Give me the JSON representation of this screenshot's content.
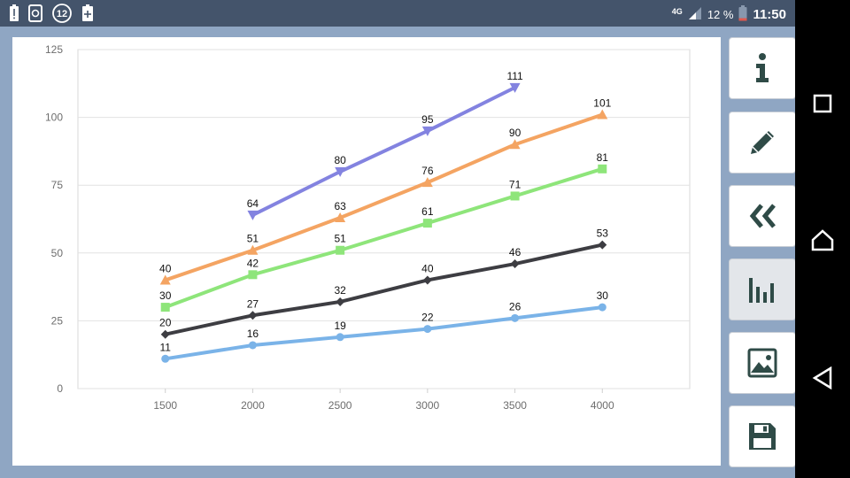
{
  "status_bar": {
    "network": "4G",
    "battery_percent": "12 %",
    "time": "11:50",
    "notification_badge": "12",
    "left_icons": [
      "battery-alert-icon",
      "sync-icon",
      "notification-count-icon",
      "battery-plus-icon"
    ]
  },
  "toolbar": {
    "buttons": [
      {
        "name": "info-button",
        "icon": "info-icon"
      },
      {
        "name": "edit-button",
        "icon": "pencil-icon"
      },
      {
        "name": "back-button",
        "icon": "double-chevron-left-icon"
      },
      {
        "name": "chart-type-button",
        "icon": "bar-chart-icon",
        "active": true
      },
      {
        "name": "image-button",
        "icon": "image-icon"
      },
      {
        "name": "save-button",
        "icon": "floppy-disk-icon"
      }
    ]
  },
  "nav_bar": [
    "recent-apps-icon",
    "home-icon",
    "back-icon"
  ],
  "chart_data": {
    "type": "line",
    "x": [
      1500,
      2000,
      2500,
      3000,
      3500,
      4000
    ],
    "ylim": [
      0,
      125
    ],
    "xlim": [
      1000,
      4500
    ],
    "y_ticks": [
      0,
      25,
      50,
      75,
      100,
      125
    ],
    "x_ticks": [
      1500,
      2000,
      2500,
      3000,
      3500,
      4000
    ],
    "grid": true,
    "series": [
      {
        "values": [
          null,
          64,
          80,
          95,
          111,
          null
        ],
        "color": "#8383e0",
        "marker": "triangle-down"
      },
      {
        "values": [
          40,
          51,
          63,
          76,
          90,
          101
        ],
        "color": "#f4a462",
        "marker": "triangle-up"
      },
      {
        "values": [
          30,
          42,
          51,
          61,
          71,
          81
        ],
        "color": "#8ee57a",
        "marker": "square"
      },
      {
        "values": [
          20,
          27,
          32,
          40,
          46,
          53
        ],
        "color": "#3d3d42",
        "marker": "diamond"
      },
      {
        "values": [
          11,
          16,
          19,
          22,
          26,
          30
        ],
        "color": "#7ab3e8",
        "marker": "circle"
      }
    ]
  }
}
